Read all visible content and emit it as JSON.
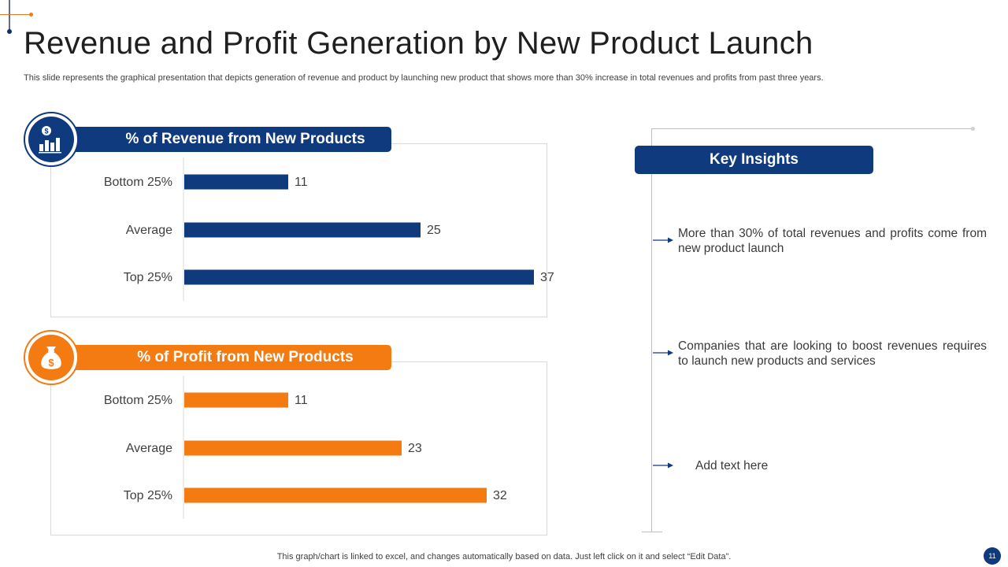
{
  "slide": {
    "title": "Revenue and Profit Generation by New Product Launch",
    "subtitle": "This slide represents the graphical presentation that depicts generation of revenue and product by launching new product that shows more than 30% increase in total revenues and profits from past three years.",
    "footnote": "This graph/chart is linked to excel,  and changes automatically based on data. Just left click on it and select “Edit Data”.",
    "page_number": "11"
  },
  "colors": {
    "navy": "#0f3a7d",
    "orange": "#f47a12",
    "gray_line": "#bfbfbf"
  },
  "icons": {
    "revenue_icon": "dollar-bar-chart-icon",
    "profit_icon": "money-bag-icon"
  },
  "chart_data": [
    {
      "type": "bar",
      "orientation": "horizontal",
      "title": "% of Revenue from New Products",
      "categories": [
        "Bottom 25%",
        "Average",
        "Top 25%"
      ],
      "values": [
        11,
        25,
        37
      ],
      "color": "#0f3a7d",
      "xlim": [
        0,
        40
      ],
      "grid": false,
      "data_labels": true
    },
    {
      "type": "bar",
      "orientation": "horizontal",
      "title": "% of Profit from New Products",
      "categories": [
        "Bottom 25%",
        "Average",
        "Top 25%"
      ],
      "values": [
        11,
        23,
        32
      ],
      "color": "#f47a12",
      "xlim": [
        0,
        40
      ],
      "grid": false,
      "data_labels": true
    }
  ],
  "key_insights": {
    "title": "Key Insights",
    "items": [
      "More than 30% of total revenues and profits come from new product launch",
      "Companies that are looking to boost revenues requires to launch new products and services",
      "Add text here"
    ]
  }
}
